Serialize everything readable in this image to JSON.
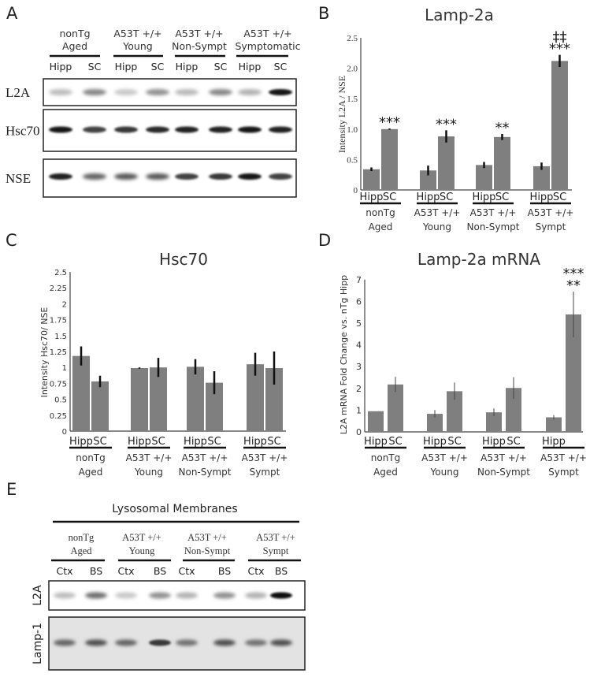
{
  "panels": {
    "A": {
      "letter": "A",
      "groups": [
        {
          "line1": "nonTg",
          "line2": "Aged"
        },
        {
          "line1": "A53T +/+",
          "line2": "Young"
        },
        {
          "line1": "A53T +/+",
          "line2": "Non-Sympt"
        },
        {
          "line1": "A53T +/+",
          "line2": "Symptomatic"
        }
      ],
      "lanes": [
        "Hipp",
        "SC",
        "Hipp",
        "SC",
        "Hipp",
        "SC",
        "Hipp",
        "SC"
      ],
      "blots": [
        {
          "label": "L2A",
          "band_intensity": [
            0.2,
            0.45,
            0.15,
            0.4,
            0.22,
            0.45,
            0.25,
            0.95
          ]
        },
        {
          "label": "Hsc70",
          "band_intensity": [
            0.95,
            0.75,
            0.8,
            0.85,
            0.9,
            0.9,
            0.95,
            0.9
          ]
        },
        {
          "label": "NSE",
          "band_intensity": [
            0.9,
            0.6,
            0.65,
            0.65,
            0.75,
            0.8,
            0.95,
            0.75
          ]
        }
      ]
    },
    "E": {
      "letter": "E",
      "title": "Lysosomal Membranes",
      "groups": [
        {
          "line1": "nonTg",
          "line2": "Aged"
        },
        {
          "line1": "A53T +/+",
          "line2": "Young"
        },
        {
          "line1": "A53T +/+",
          "line2": "Non-Sympt"
        },
        {
          "line1": "A53T +/+",
          "line2": "Sympt"
        }
      ],
      "lanes": [
        "Ctx",
        "BS",
        "Ctx",
        "BS",
        "Ctx",
        "BS",
        "Ctx",
        "BS"
      ],
      "blots": [
        {
          "label": "L2A",
          "band_intensity": [
            0.2,
            0.55,
            0.15,
            0.4,
            0.25,
            0.4,
            0.25,
            1.0
          ]
        },
        {
          "label": "Lamp-1",
          "band_intensity": [
            0.6,
            0.7,
            0.6,
            0.8,
            0.55,
            0.7,
            0.55,
            0.7
          ]
        }
      ]
    }
  },
  "chart_data": [
    {
      "panel": "B",
      "type": "bar",
      "title": "Lamp-2a",
      "ylabel": "Intensity L2A / NSE",
      "ylim": [
        0,
        2.5
      ],
      "yticks": [
        "0",
        "0.5",
        "1.0",
        "1.5",
        "2.0",
        "2.5"
      ],
      "ytick_values": [
        0,
        0.5,
        1.0,
        1.5,
        2.0,
        2.5
      ],
      "bar_color": "#7f7f7f",
      "groups": [
        {
          "bar_labels": [
            "Hipp",
            "SC"
          ],
          "line1": "nonTg",
          "line2": "Aged",
          "values": [
            0.34,
            1.0
          ],
          "errors": [
            0.03,
            0.01
          ],
          "annotations": [
            "***"
          ]
        },
        {
          "bar_labels": [
            "Hipp",
            "SC"
          ],
          "line1": "A53T +/+",
          "line2": "Young",
          "values": [
            0.32,
            0.88
          ],
          "errors": [
            0.08,
            0.1
          ],
          "annotations": [
            "***"
          ]
        },
        {
          "bar_labels": [
            "Hipp",
            "SC"
          ],
          "line1": "A53T +/+",
          "line2": "Non-Sympt",
          "values": [
            0.41,
            0.87
          ],
          "errors": [
            0.05,
            0.05
          ],
          "annotations": [
            "**"
          ]
        },
        {
          "bar_labels": [
            "Hipp",
            "SC"
          ],
          "line1": "A53T +/+",
          "line2": "Sympt",
          "values": [
            0.39,
            2.12
          ],
          "errors": [
            0.06,
            0.1
          ],
          "annotations": [
            "***",
            "‡‡"
          ]
        }
      ]
    },
    {
      "panel": "C",
      "type": "bar",
      "title": "Hsc70",
      "ylabel": "Intensity Hsc70/ NSE",
      "ylim": [
        0,
        2.5
      ],
      "yticks": [
        "0",
        "0.25",
        "0.5",
        "0.75",
        "1",
        "1.25",
        "1.5",
        "1.75",
        "2",
        "2.25",
        "2.5"
      ],
      "ytick_values": [
        0,
        0.25,
        0.5,
        0.75,
        1,
        1.25,
        1.5,
        1.75,
        2,
        2.25,
        2.5
      ],
      "bar_color": "#7f7f7f",
      "groups": [
        {
          "bar_labels": [
            "Hipp",
            "SC"
          ],
          "line1": "nonTg",
          "line2": "Aged",
          "values": [
            1.18,
            0.78
          ],
          "errors": [
            0.15,
            0.09
          ],
          "annotations": []
        },
        {
          "bar_labels": [
            "Hipp",
            "SC"
          ],
          "line1": "A53T +/+",
          "line2": "Young",
          "values": [
            0.99,
            1.0
          ],
          "errors": [
            0.01,
            0.15
          ],
          "annotations": []
        },
        {
          "bar_labels": [
            "Hipp",
            "SC"
          ],
          "line1": "A53T +/+",
          "line2": "Non-Sympt",
          "values": [
            1.01,
            0.76
          ],
          "errors": [
            0.12,
            0.18
          ],
          "annotations": []
        },
        {
          "bar_labels": [
            "Hipp",
            "SC"
          ],
          "line1": "A53T +/+",
          "line2": "Sympt",
          "values": [
            1.05,
            0.99
          ],
          "errors": [
            0.18,
            0.26
          ],
          "annotations": []
        }
      ]
    },
    {
      "panel": "D",
      "type": "bar",
      "title": "Lamp-2a mRNA",
      "ylabel": "L2A mRNA Fold Change vs. nTg Hipp",
      "ylim": [
        0,
        7
      ],
      "yticks": [
        "0",
        "1",
        "2",
        "3",
        "4",
        "5",
        "6",
        "7"
      ],
      "ytick_values": [
        0,
        1,
        2,
        3,
        4,
        5,
        6,
        7
      ],
      "bar_color": "#7f7f7f",
      "groups": [
        {
          "bar_labels": [
            "Hipp",
            "SC"
          ],
          "line1": "nonTg",
          "line2": "Aged",
          "values": [
            0.95,
            2.18
          ],
          "errors": [
            0.0,
            0.35
          ],
          "annotations": []
        },
        {
          "bar_labels": [
            "Hipp",
            "SC"
          ],
          "line1": "A53T +/+",
          "line2": "Young",
          "values": [
            0.83,
            1.87
          ],
          "errors": [
            0.17,
            0.4
          ],
          "annotations": []
        },
        {
          "bar_labels": [
            "Hipp",
            "SC"
          ],
          "line1": "A53T +/+",
          "line2": "Non-Sympt",
          "values": [
            0.9,
            2.02
          ],
          "errors": [
            0.18,
            0.5
          ],
          "annotations": []
        },
        {
          "bar_labels": [
            "Hipp",
            ""
          ],
          "line1": "A53T +/+",
          "line2": "Sympt",
          "values": [
            0.67,
            5.4
          ],
          "errors": [
            0.1,
            1.05
          ],
          "annotations": [
            "**",
            "***"
          ]
        }
      ]
    }
  ]
}
